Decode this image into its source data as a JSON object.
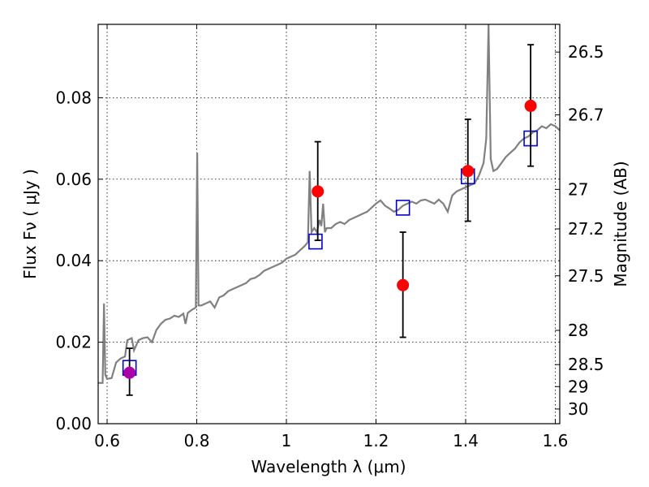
{
  "chart_data": {
    "type": "scatter",
    "xlabel": "Wavelength  λ (μm)",
    "ylabel": "Flux  Fν  ( μJy )",
    "y2label": "Magnitude (AB)",
    "xlim": [
      0.58,
      1.61
    ],
    "ylim": [
      0.0,
      0.098
    ],
    "x_ticks": [
      0.6,
      0.8,
      1.0,
      1.2,
      1.4,
      1.6
    ],
    "x_tick_labels": [
      "0.6",
      "0.8",
      "1",
      "1.2",
      "1.4",
      "1.6"
    ],
    "y_ticks": [
      0.0,
      0.02,
      0.04,
      0.06,
      0.08
    ],
    "y_tick_labels": [
      "0.00",
      "0.02",
      "0.04",
      "0.06",
      "0.08"
    ],
    "y2_ticks": [
      {
        "label": "26.5",
        "flux": 0.0912
      },
      {
        "label": "26.7",
        "flux": 0.0758
      },
      {
        "label": "27",
        "flux": 0.0575
      },
      {
        "label": "27.2",
        "flux": 0.0478
      },
      {
        "label": "27.5",
        "flux": 0.0363
      },
      {
        "label": "28",
        "flux": 0.0229
      },
      {
        "label": "28.5",
        "flux": 0.0145
      },
      {
        "label": "29",
        "flux": 0.0091
      },
      {
        "label": "30",
        "flux": 0.0036
      }
    ],
    "grid": true,
    "colors": {
      "spectrum": "#808080",
      "observed": "#ff0000",
      "observed_first": "#aa00aa",
      "model": "#0000cc",
      "errorbar": "#000000"
    },
    "observed_points": [
      {
        "x": 0.65,
        "y": 0.0125,
        "yerr_low": 0.0055,
        "yerr_high": 0.006
      },
      {
        "x": 1.07,
        "y": 0.057,
        "yerr_low": 0.012,
        "yerr_high": 0.0122
      },
      {
        "x": 1.26,
        "y": 0.034,
        "yerr_low": 0.0128,
        "yerr_high": 0.013
      },
      {
        "x": 1.405,
        "y": 0.062,
        "yerr_low": 0.0123,
        "yerr_high": 0.0127
      },
      {
        "x": 1.545,
        "y": 0.078,
        "yerr_low": 0.0148,
        "yerr_high": 0.015
      }
    ],
    "model_points": [
      {
        "x": 0.65,
        "y": 0.0137
      },
      {
        "x": 1.065,
        "y": 0.0447
      },
      {
        "x": 1.26,
        "y": 0.053
      },
      {
        "x": 1.405,
        "y": 0.0607
      },
      {
        "x": 1.545,
        "y": 0.07
      }
    ],
    "spectrum": [
      [
        0.58,
        0.01
      ],
      [
        0.59,
        0.01
      ],
      [
        0.593,
        0.0295
      ],
      [
        0.596,
        0.012
      ],
      [
        0.6,
        0.011
      ],
      [
        0.61,
        0.0112
      ],
      [
        0.62,
        0.015
      ],
      [
        0.63,
        0.016
      ],
      [
        0.64,
        0.0165
      ],
      [
        0.645,
        0.0205
      ],
      [
        0.655,
        0.021
      ],
      [
        0.66,
        0.018
      ],
      [
        0.67,
        0.0205
      ],
      [
        0.68,
        0.021
      ],
      [
        0.69,
        0.0212
      ],
      [
        0.7,
        0.02
      ],
      [
        0.71,
        0.023
      ],
      [
        0.72,
        0.0245
      ],
      [
        0.73,
        0.0255
      ],
      [
        0.74,
        0.0258
      ],
      [
        0.75,
        0.0265
      ],
      [
        0.76,
        0.0262
      ],
      [
        0.77,
        0.027
      ],
      [
        0.775,
        0.0245
      ],
      [
        0.78,
        0.0272
      ],
      [
        0.79,
        0.028
      ],
      [
        0.798,
        0.0285
      ],
      [
        0.801,
        0.0665
      ],
      [
        0.804,
        0.029
      ],
      [
        0.81,
        0.029
      ],
      [
        0.82,
        0.0295
      ],
      [
        0.83,
        0.03
      ],
      [
        0.84,
        0.0285
      ],
      [
        0.85,
        0.031
      ],
      [
        0.86,
        0.0315
      ],
      [
        0.87,
        0.0325
      ],
      [
        0.88,
        0.033
      ],
      [
        0.89,
        0.0335
      ],
      [
        0.9,
        0.034
      ],
      [
        0.91,
        0.0345
      ],
      [
        0.92,
        0.0355
      ],
      [
        0.93,
        0.0358
      ],
      [
        0.94,
        0.0365
      ],
      [
        0.95,
        0.0375
      ],
      [
        0.96,
        0.038
      ],
      [
        0.97,
        0.0385
      ],
      [
        0.98,
        0.039
      ],
      [
        0.99,
        0.0395
      ],
      [
        1.0,
        0.0405
      ],
      [
        1.01,
        0.041
      ],
      [
        1.02,
        0.0415
      ],
      [
        1.03,
        0.0425
      ],
      [
        1.04,
        0.0435
      ],
      [
        1.048,
        0.0445
      ],
      [
        1.052,
        0.062
      ],
      [
        1.056,
        0.047
      ],
      [
        1.062,
        0.048
      ],
      [
        1.068,
        0.047
      ],
      [
        1.074,
        0.05
      ],
      [
        1.078,
        0.0485
      ],
      [
        1.082,
        0.054
      ],
      [
        1.086,
        0.047
      ],
      [
        1.09,
        0.048
      ],
      [
        1.1,
        0.048
      ],
      [
        1.11,
        0.049
      ],
      [
        1.12,
        0.0495
      ],
      [
        1.13,
        0.049
      ],
      [
        1.14,
        0.05
      ],
      [
        1.15,
        0.0505
      ],
      [
        1.16,
        0.051
      ],
      [
        1.17,
        0.0515
      ],
      [
        1.18,
        0.052
      ],
      [
        1.19,
        0.053
      ],
      [
        1.2,
        0.054
      ],
      [
        1.21,
        0.0548
      ],
      [
        1.22,
        0.0535
      ],
      [
        1.23,
        0.0528
      ],
      [
        1.24,
        0.052
      ],
      [
        1.25,
        0.0525
      ],
      [
        1.26,
        0.0535
      ],
      [
        1.27,
        0.054
      ],
      [
        1.28,
        0.0545
      ],
      [
        1.29,
        0.054
      ],
      [
        1.3,
        0.0548
      ],
      [
        1.31,
        0.055
      ],
      [
        1.32,
        0.0545
      ],
      [
        1.33,
        0.054
      ],
      [
        1.34,
        0.055
      ],
      [
        1.35,
        0.054
      ],
      [
        1.36,
        0.052
      ],
      [
        1.37,
        0.056
      ],
      [
        1.38,
        0.057
      ],
      [
        1.39,
        0.0575
      ],
      [
        1.4,
        0.058
      ],
      [
        1.41,
        0.0585
      ],
      [
        1.42,
        0.059
      ],
      [
        1.43,
        0.061
      ],
      [
        1.44,
        0.064
      ],
      [
        1.446,
        0.07
      ],
      [
        1.451,
        0.098
      ],
      [
        1.456,
        0.065
      ],
      [
        1.462,
        0.062
      ],
      [
        1.47,
        0.0625
      ],
      [
        1.48,
        0.064
      ],
      [
        1.49,
        0.0655
      ],
      [
        1.5,
        0.0665
      ],
      [
        1.51,
        0.0675
      ],
      [
        1.52,
        0.069
      ],
      [
        1.53,
        0.07
      ],
      [
        1.54,
        0.0705
      ],
      [
        1.55,
        0.0715
      ],
      [
        1.56,
        0.072
      ],
      [
        1.57,
        0.073
      ],
      [
        1.58,
        0.0725
      ],
      [
        1.59,
        0.0735
      ],
      [
        1.6,
        0.073
      ],
      [
        1.61,
        0.072
      ]
    ]
  }
}
